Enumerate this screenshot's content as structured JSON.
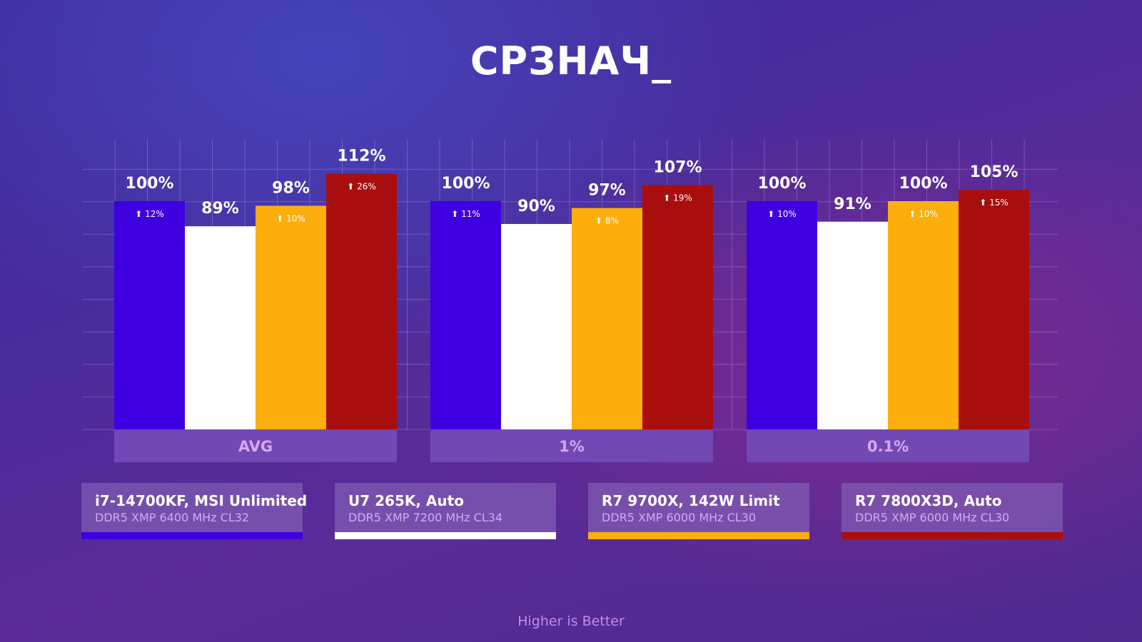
{
  "title": "СРЗНАЧ_",
  "footer": "Higher is Better",
  "colors": {
    "series": [
      "#3f00e0",
      "#ffffff",
      "#fbae0c",
      "#a80e0e"
    ],
    "grid": "#a68ad4",
    "group_label_bg": "#7248b4",
    "group_label_text": "#d7a7f3"
  },
  "legend": [
    {
      "name": "i7-14700KF, MSI Unlimited",
      "memory": "DDR5 XMP 6400 MHz CL32",
      "color": "#3f00e0"
    },
    {
      "name": "U7 265K, Auto",
      "memory": "DDR5 XMP 7200 MHz CL34",
      "color": "#ffffff"
    },
    {
      "name": "R7 9700X, 142W Limit",
      "memory": "DDR5 XMP 6000 MHz CL30",
      "color": "#fbae0c"
    },
    {
      "name": "R7 7800X3D, Auto",
      "memory": "DDR5 XMP 6000 MHz CL30",
      "color": "#a80e0e"
    }
  ],
  "chart_data": {
    "type": "bar",
    "categories": [
      "AVG",
      "1%",
      "0.1%"
    ],
    "series": [
      {
        "name": "i7-14700KF, MSI Unlimited",
        "values": [
          100,
          100,
          100
        ],
        "labels": [
          "100%",
          "100%",
          "100%"
        ],
        "gain": [
          "12%",
          "11%",
          "10%"
        ]
      },
      {
        "name": "U7 265K, Auto",
        "values": [
          89,
          90,
          91
        ],
        "labels": [
          "89%",
          "90%",
          "91%"
        ],
        "gain": [
          null,
          null,
          null
        ]
      },
      {
        "name": "R7 9700X, 142W Limit",
        "values": [
          98,
          97,
          100
        ],
        "labels": [
          "98%",
          "97%",
          "100%"
        ],
        "gain": [
          "10%",
          "8%",
          "10%"
        ]
      },
      {
        "name": "R7 7800X3D, Auto",
        "values": [
          112,
          107,
          105
        ],
        "labels": [
          "112%",
          "107%",
          "105%"
        ],
        "gain": [
          "26%",
          "19%",
          "15%"
        ]
      }
    ],
    "gain_arrow": "⬆",
    "ylim": [
      0,
      120
    ],
    "grid": true,
    "legend_position": "bottom"
  }
}
